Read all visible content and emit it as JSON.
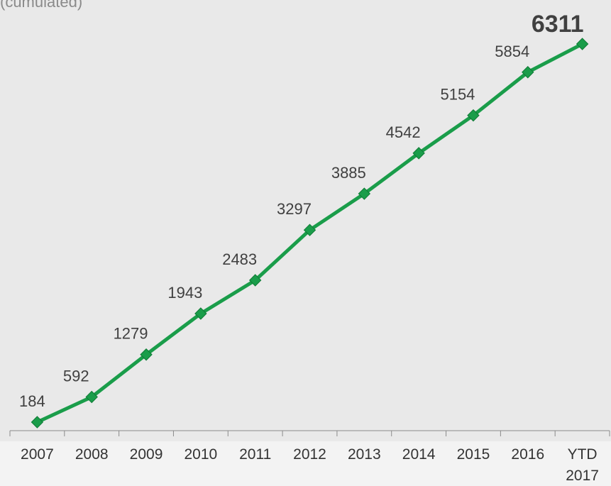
{
  "subtitle": "(cumulated)",
  "colors": {
    "line": "#1a9d4a",
    "marker": "#1a9d4a",
    "label": "#404040",
    "axis": "#8a8a8a",
    "bold_label": "#404040"
  },
  "chart_data": {
    "type": "line",
    "title": "",
    "xlabel": "",
    "ylabel": "",
    "categories": [
      "2007",
      "2008",
      "2009",
      "2010",
      "2011",
      "2012",
      "2013",
      "2014",
      "2015",
      "2016",
      "YTD 2017"
    ],
    "category_lines": [
      [
        "2007"
      ],
      [
        "2008"
      ],
      [
        "2009"
      ],
      [
        "2010"
      ],
      [
        "2011"
      ],
      [
        "2012"
      ],
      [
        "2013"
      ],
      [
        "2014"
      ],
      [
        "2015"
      ],
      [
        "2016"
      ],
      [
        "YTD",
        "2017"
      ]
    ],
    "values": [
      184,
      592,
      1279,
      1943,
      2483,
      3297,
      3885,
      4542,
      5154,
      5854,
      6311
    ],
    "data_labels": [
      "184",
      "592",
      "1279",
      "1943",
      "2483",
      "3297",
      "3885",
      "4542",
      "5154",
      "5854",
      "6311"
    ],
    "highlight_last_label": true,
    "ylim": [
      0,
      6800
    ],
    "grid": false,
    "legend": "none",
    "marker": "diamond"
  }
}
